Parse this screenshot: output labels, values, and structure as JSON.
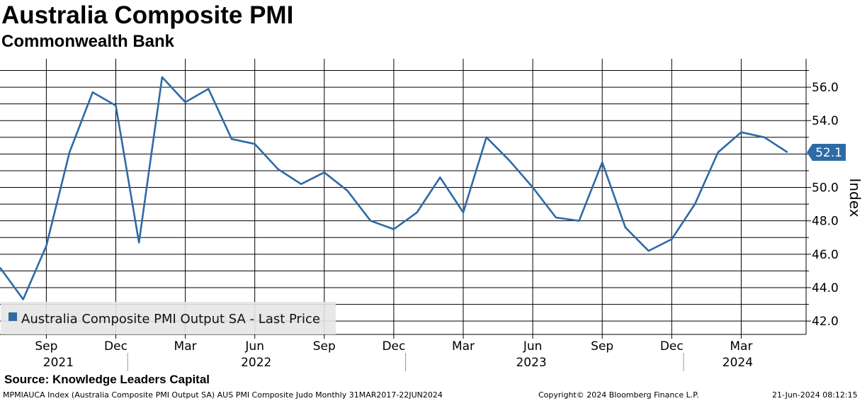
{
  "header": {
    "title": "Australia Composite PMI",
    "subtitle": "Commonwealth Bank"
  },
  "footer": {
    "source": "Source: Knowledge Leaders Capital",
    "ticker": "MPMIAUCA Index (Australia Composite PMI Output SA) AUS PMI Composite Judo  Monthly 31MAR2017-22JUN2024",
    "copyright": "Copyright© 2024 Bloomberg Finance L.P.",
    "timestamp": "21-Jun-2024 08:12:15"
  },
  "colors": {
    "series": "#2e6aa6",
    "grid": "#000000",
    "legend_bg": "#e6e6e6",
    "last_value_bg": "#2e6aa6"
  },
  "chart_data": {
    "type": "line",
    "title": "Australia Composite PMI",
    "subtitle": "Commonwealth Bank",
    "ylabel": "Index",
    "ylim": [
      41.2,
      57.7
    ],
    "y_ticks": [
      "42.0",
      "44.0",
      "46.0",
      "48.0",
      "50.0",
      "52.0",
      "54.0",
      "56.0"
    ],
    "x_tick_labels": [
      "Sep",
      "Dec",
      "Mar",
      "Jun",
      "Sep",
      "Dec",
      "Mar",
      "Jun",
      "Sep",
      "Dec",
      "Mar"
    ],
    "x_year_labels": [
      "2021",
      "2022",
      "2023",
      "2024"
    ],
    "grid": true,
    "legend_position": "bottom-left",
    "last_value_label": "52.1",
    "series": [
      {
        "name": "Australia Composite PMI Output SA - Last Price",
        "x": [
          "2021-07",
          "2021-08",
          "2021-09",
          "2021-10",
          "2021-11",
          "2021-12",
          "2022-01",
          "2022-02",
          "2022-03",
          "2022-04",
          "2022-05",
          "2022-06",
          "2022-07",
          "2022-08",
          "2022-09",
          "2022-10",
          "2022-11",
          "2022-12",
          "2023-01",
          "2023-02",
          "2023-03",
          "2023-04",
          "2023-05",
          "2023-06",
          "2023-07",
          "2023-08",
          "2023-09",
          "2023-10",
          "2023-11",
          "2023-12",
          "2024-01",
          "2024-02",
          "2024-03",
          "2024-04",
          "2024-05"
        ],
        "values": [
          45.2,
          43.3,
          46.5,
          52.1,
          55.7,
          54.9,
          46.7,
          56.6,
          55.1,
          55.9,
          52.9,
          52.6,
          51.1,
          50.2,
          50.9,
          49.8,
          48.0,
          47.5,
          48.5,
          50.6,
          48.5,
          53.0,
          51.6,
          50.0,
          48.2,
          48.0,
          51.5,
          47.6,
          46.2,
          46.9,
          49.0,
          52.1,
          53.3,
          53.0,
          52.1
        ]
      }
    ]
  }
}
